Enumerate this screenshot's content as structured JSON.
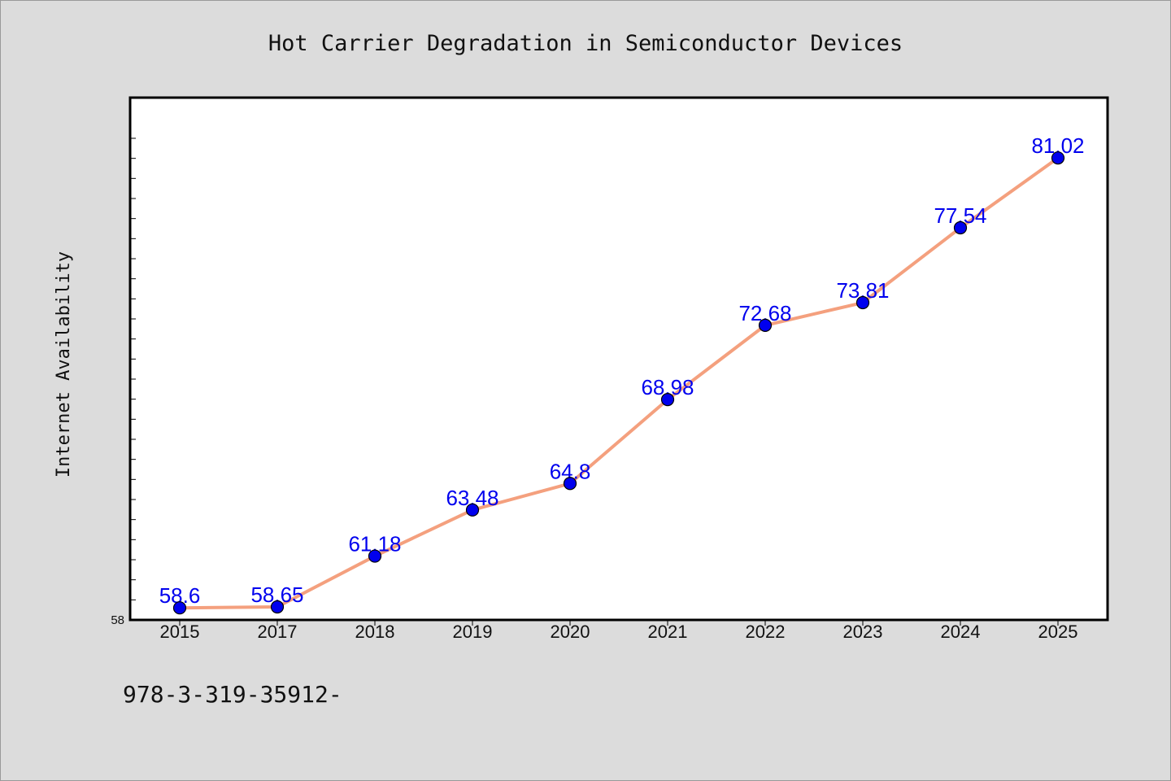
{
  "chart_data": {
    "type": "line",
    "title": "Hot Carrier Degradation in Semiconductor Devices",
    "xlabel": "",
    "ylabel": "Internet Availability",
    "categories": [
      "2015",
      "2017",
      "2018",
      "2019",
      "2020",
      "2021",
      "2022",
      "2023",
      "2024",
      "2025"
    ],
    "series": [
      {
        "values": [
          58.6,
          58.65,
          61.18,
          63.48,
          64.8,
          68.98,
          72.68,
          73.81,
          77.54,
          81.02
        ],
        "labels": [
          "58.6",
          "58.65",
          "61.18",
          "63.48",
          "64.8",
          "68.98",
          "72.68",
          "73.81",
          "77.54",
          "81.02"
        ]
      }
    ],
    "y_tick_labels": [
      "58"
    ],
    "ylim": [
      58,
      84
    ],
    "grid": false,
    "legend": "none",
    "colors": {
      "line": "#f4a07e",
      "marker": "#0000ee",
      "data_label": "#0000ee",
      "plot_background": "#ffffff",
      "figure_background": "#dcdcdc"
    }
  },
  "footer": {
    "text": "978-3-319-35912-"
  }
}
